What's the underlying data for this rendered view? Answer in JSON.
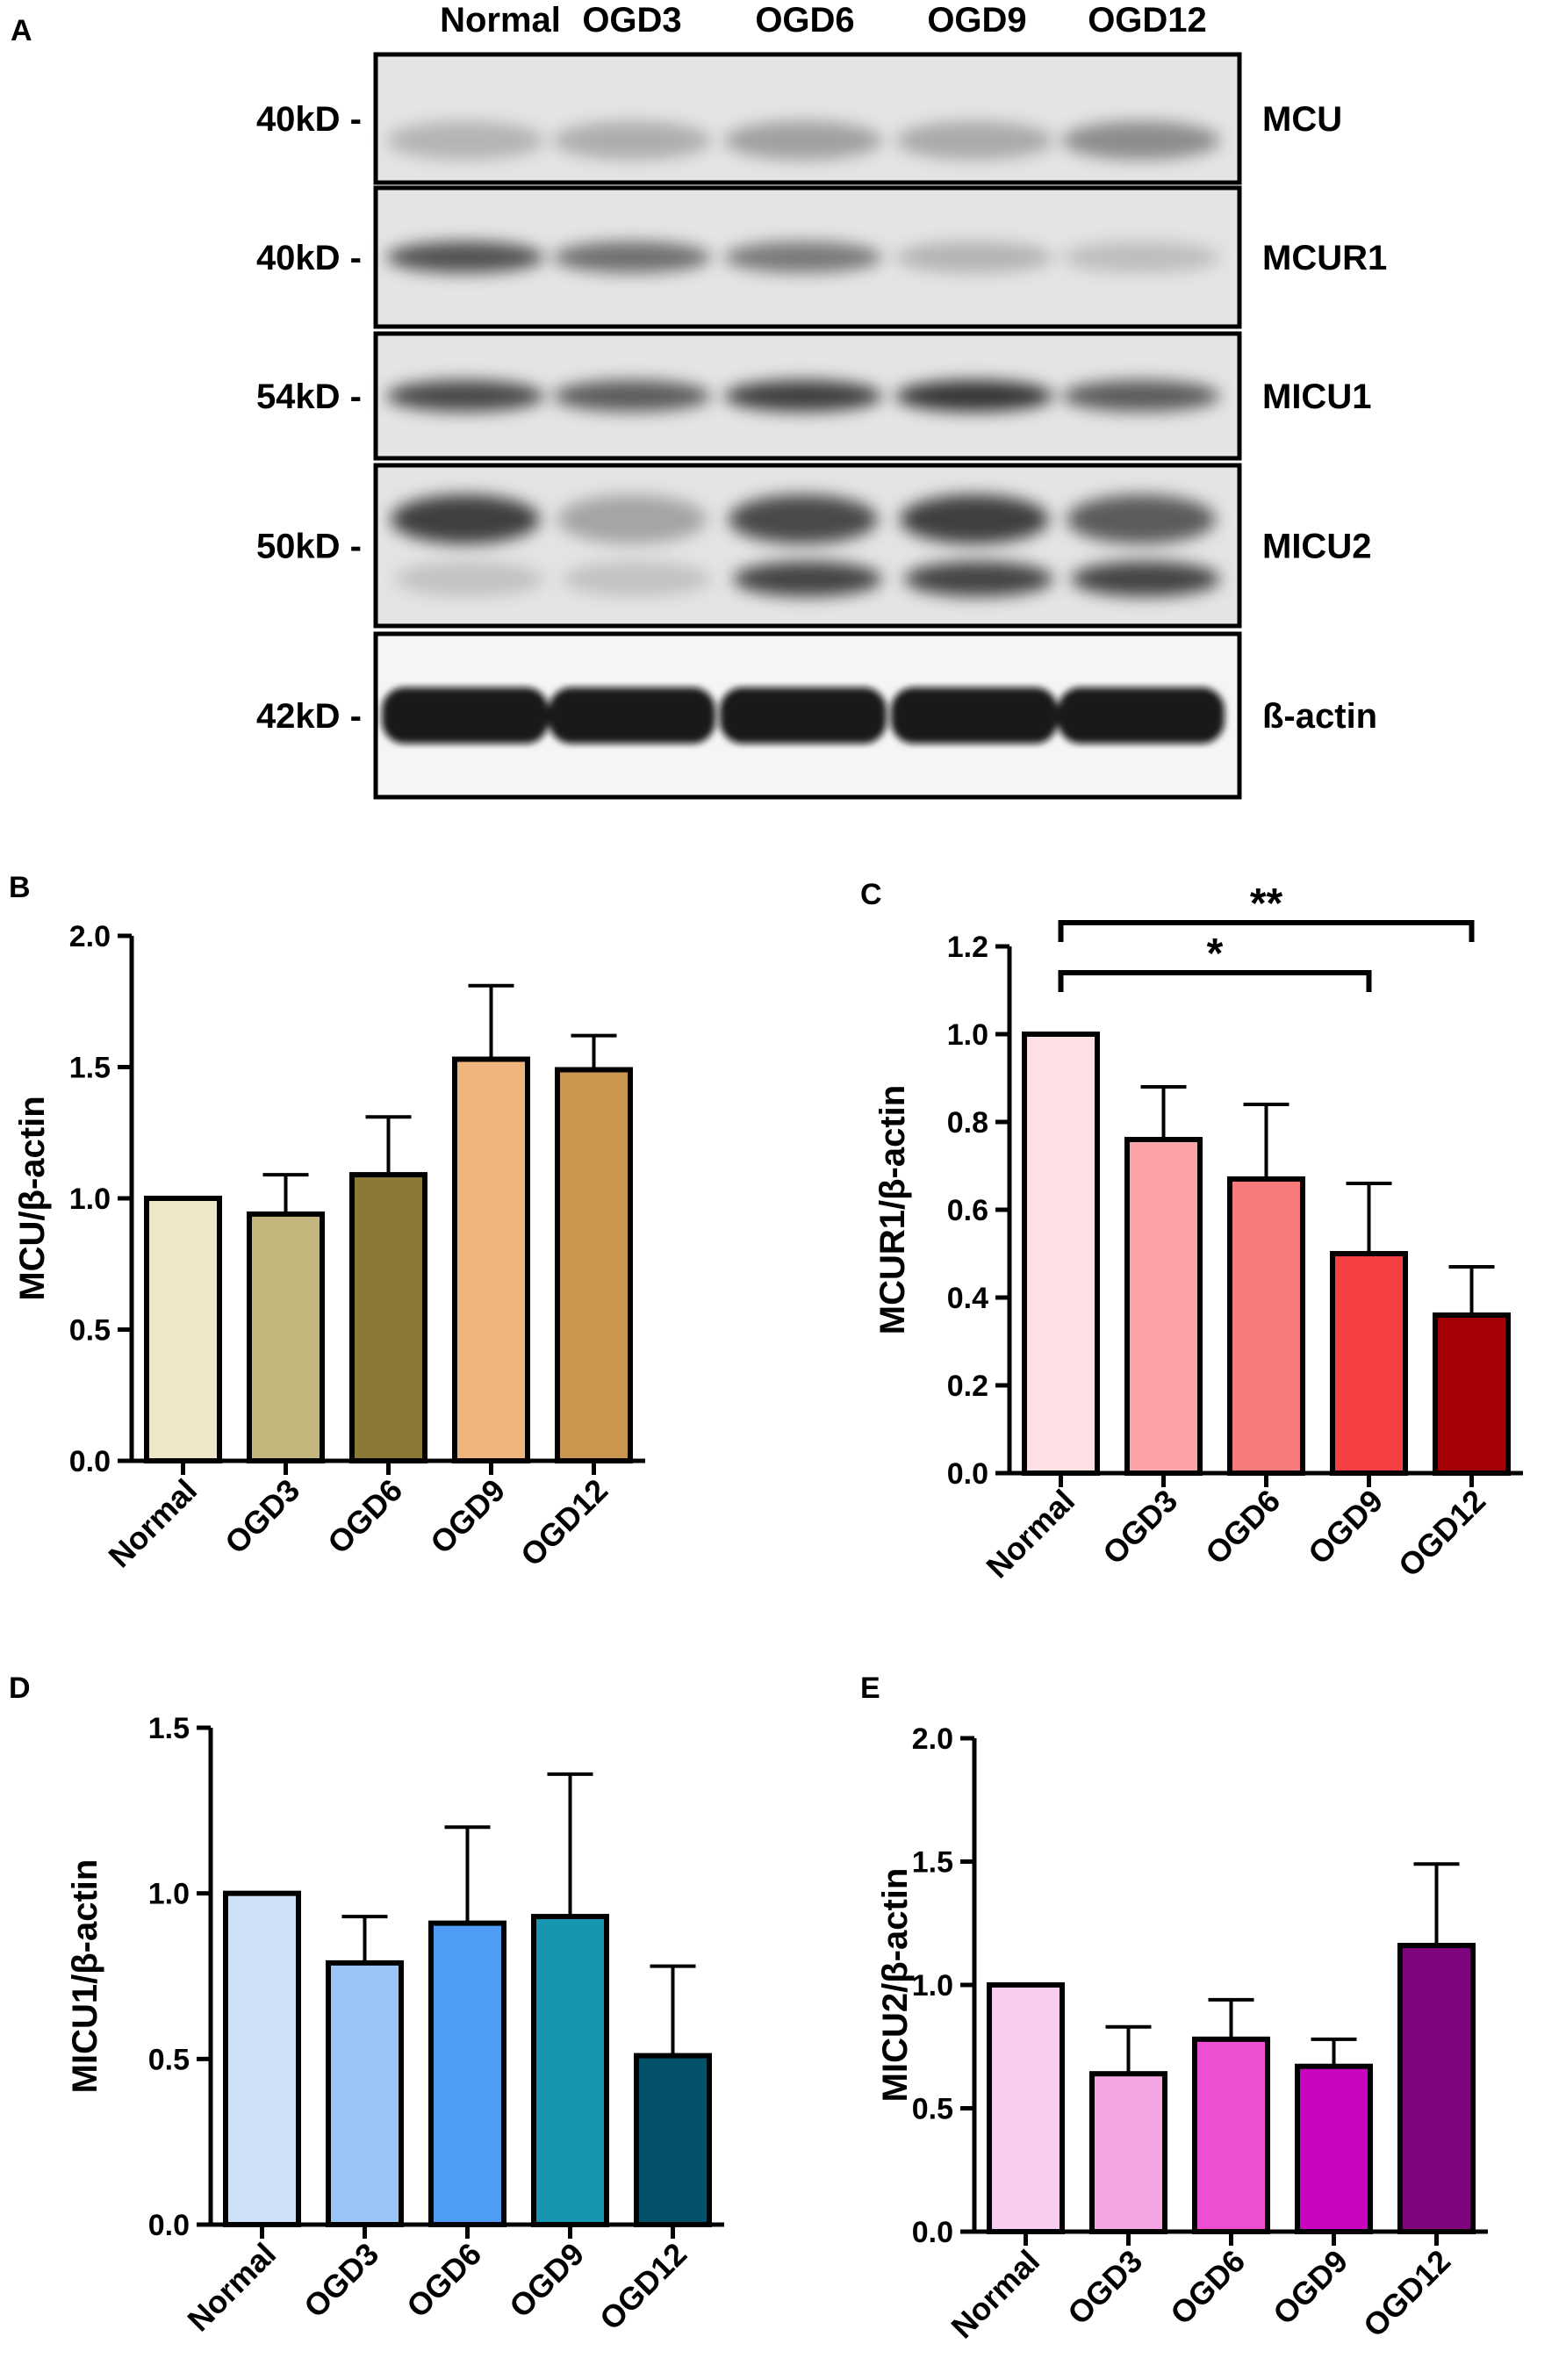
{
  "blot": {
    "panel_label": "A",
    "lanes": [
      "Normal",
      "OGD3",
      "OGD6",
      "OGD9",
      "OGD12"
    ],
    "rows": [
      {
        "marker": "40kD -",
        "protein": "MCU"
      },
      {
        "marker": "40kD -",
        "protein": "MCUR1"
      },
      {
        "marker": "54kD -",
        "protein": "MICU1"
      },
      {
        "marker": "50kD -",
        "protein": "MICU2"
      },
      {
        "marker": "42kD -",
        "protein": "ß-actin"
      }
    ]
  },
  "colors": {
    "B": [
      "#ede6c8",
      "#c4b77d",
      "#8b7a37",
      "#f0b57c",
      "#c9954f"
    ],
    "C": [
      "#fde0e4",
      "#fba3a7",
      "#f77b7b",
      "#f53f42",
      "#a50005"
    ],
    "D": [
      "#cfe1f8",
      "#9cc5f7",
      "#4e9cf5",
      "#1796b2",
      "#03526a"
    ],
    "E": [
      "#f8cdee",
      "#f3a6e3",
      "#ee4fd2",
      "#c904bf",
      "#81047f"
    ]
  },
  "chart_data": [
    {
      "panel": "B",
      "type": "bar",
      "categories": [
        "Normal",
        "OGD3",
        "OGD6",
        "OGD9",
        "OGD12"
      ],
      "values": [
        1.0,
        0.94,
        1.09,
        1.53,
        1.49
      ],
      "errors": [
        0.0,
        0.15,
        0.22,
        0.28,
        0.13
      ],
      "ylabel": "MCU/β-actin",
      "ylim": [
        0,
        2.0
      ],
      "ticks": [
        "0.0",
        "0.5",
        "1.0",
        "1.5",
        "2.0"
      ],
      "significance": []
    },
    {
      "panel": "C",
      "type": "bar",
      "categories": [
        "Normal",
        "OGD3",
        "OGD6",
        "OGD9",
        "OGD12"
      ],
      "values": [
        1.0,
        0.76,
        0.67,
        0.5,
        0.36
      ],
      "errors": [
        0.0,
        0.12,
        0.17,
        0.16,
        0.11
      ],
      "ylabel": "MCUR1/β-actin",
      "ylim": [
        0,
        1.2
      ],
      "ticks": [
        "0.0",
        "0.2",
        "0.4",
        "0.6",
        "0.8",
        "1.0",
        "1.2"
      ],
      "significance": [
        {
          "from": 0,
          "to": 3,
          "label": "*"
        },
        {
          "from": 0,
          "to": 4,
          "label": "**"
        }
      ]
    },
    {
      "panel": "D",
      "type": "bar",
      "categories": [
        "Normal",
        "OGD3",
        "OGD6",
        "OGD9",
        "OGD12"
      ],
      "values": [
        1.0,
        0.79,
        0.91,
        0.93,
        0.51
      ],
      "errors": [
        0.0,
        0.14,
        0.29,
        0.43,
        0.27
      ],
      "ylabel": "MICU1/β-actin",
      "ylim": [
        0,
        1.5
      ],
      "ticks": [
        "0.0",
        "0.5",
        "1.0",
        "1.5"
      ],
      "significance": []
    },
    {
      "panel": "E",
      "type": "bar",
      "categories": [
        "Normal",
        "OGD3",
        "OGD6",
        "OGD9",
        "OGD12"
      ],
      "values": [
        1.0,
        0.64,
        0.78,
        0.67,
        1.16
      ],
      "errors": [
        0.0,
        0.19,
        0.16,
        0.11,
        0.33
      ],
      "ylabel": "MICU2/β-actin",
      "ylim": [
        0,
        2.0
      ],
      "ticks": [
        "0.0",
        "0.5",
        "1.0",
        "1.5",
        "2.0"
      ],
      "significance": []
    }
  ]
}
